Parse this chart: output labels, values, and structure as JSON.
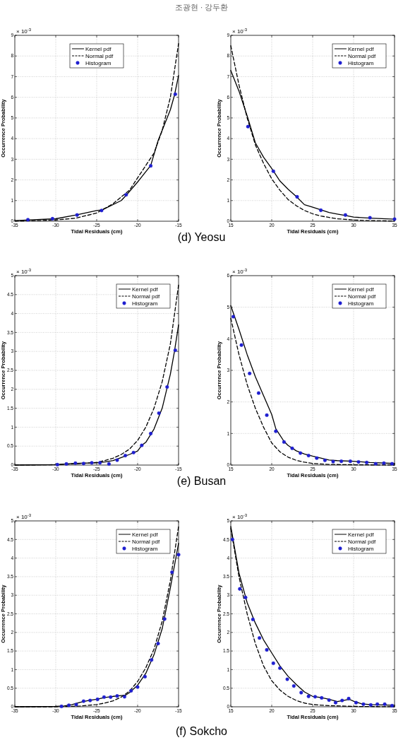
{
  "chart_data": [
    {
      "type": "line",
      "xlabel": "Tidal Residuals (cm)",
      "ylabel": "Occurrence Probability",
      "xlim": [
        -35,
        -15
      ],
      "xticks": [
        -35,
        -30,
        -25,
        -20,
        -15
      ],
      "ylim": [
        0,
        9
      ],
      "yticks": [
        0,
        1,
        2,
        3,
        4,
        5,
        6,
        7,
        8,
        9
      ],
      "grid": true,
      "legend": "top",
      "annotations": [
        "× 10$^{-3}$",
        "조광현 · 강두환"
      ],
      "series": [
        {
          "name": "Kernel pdf",
          "color": "#000000",
          "line_style": "solid",
          "x": [
            -35,
            -30,
            -27.5,
            -25,
            -24.3,
            -22,
            -21.3,
            -20,
            -18.4,
            -17.5,
            -16,
            -15.5,
            -15
          ],
          "values": [
            0.03,
            0.12,
            0.3,
            0.52,
            0.55,
            1.0,
            1.3,
            1.9,
            2.7,
            3.9,
            5.4,
            6.1,
            7.05
          ]
        },
        {
          "name": "Normal pdf",
          "color": "#000000",
          "line_style": "dashed",
          "x": [
            -35,
            -32,
            -30,
            -27.5,
            -25,
            -23,
            -21,
            -20,
            -18,
            -17,
            -16,
            -15
          ],
          "values": [
            0.01,
            0.03,
            0.06,
            0.15,
            0.4,
            0.85,
            1.5,
            2.1,
            3.3,
            4.4,
            6.0,
            8.6
          ]
        },
        {
          "name": "Histogram",
          "type": "scatter",
          "color": "#1f1fd0",
          "marker": "circle",
          "x": [
            -33.4,
            -30.4,
            -27.4,
            -24.4,
            -21.4,
            -18.4,
            -15.4
          ],
          "values": [
            0.07,
            0.12,
            0.3,
            0.52,
            1.28,
            2.68,
            6.15
          ]
        }
      ]
    },
    {
      "type": "line",
      "title": "(d) Yeosu",
      "xlabel": "Tidal Residuals (cm)",
      "ylabel": "Occurrence Probability",
      "xlim": [
        15,
        35
      ],
      "xticks": [
        15,
        20,
        25,
        30,
        35
      ],
      "ylim": [
        0,
        9
      ],
      "yticks": [
        0,
        1,
        2,
        3,
        4,
        5,
        6,
        7,
        8,
        9
      ],
      "grid": true,
      "legend": "top right",
      "annotations": [
        "× 10$^{-3}$"
      ],
      "series": [
        {
          "name": "Kernel pdf",
          "color": "#000000",
          "line_style": "solid",
          "x": [
            15,
            16,
            17,
            18,
            19,
            20,
            21,
            22,
            23,
            24,
            25,
            26,
            27,
            28,
            29,
            30,
            32,
            35
          ],
          "values": [
            7.3,
            6.3,
            5.1,
            3.8,
            3.1,
            2.55,
            1.95,
            1.55,
            1.2,
            0.8,
            0.68,
            0.55,
            0.42,
            0.35,
            0.28,
            0.2,
            0.15,
            0.1
          ]
        },
        {
          "name": "Normal pdf",
          "color": "#000000",
          "line_style": "dashed",
          "x": [
            15,
            16,
            17,
            18,
            19,
            20,
            21,
            22,
            23,
            24,
            25,
            26,
            28,
            30,
            32,
            35
          ],
          "values": [
            8.5,
            6.6,
            5.0,
            3.7,
            2.8,
            2.05,
            1.5,
            1.05,
            0.75,
            0.52,
            0.36,
            0.25,
            0.12,
            0.06,
            0.03,
            0.01
          ]
        },
        {
          "name": "Histogram",
          "type": "scatter",
          "color": "#1f1fd0",
          "marker": "circle",
          "x": [
            17.1,
            20.2,
            23.1,
            26,
            29,
            32,
            35
          ],
          "values": [
            4.58,
            2.42,
            1.18,
            0.53,
            0.3,
            0.17,
            0.1
          ]
        }
      ]
    },
    {
      "type": "line",
      "xlabel": "Tidal Residuals (cm)",
      "ylabel": "Occurrence Probability",
      "xlim": [
        -35,
        -15
      ],
      "xticks": [
        -35,
        -30,
        -25,
        -20,
        -15
      ],
      "ylim": [
        0,
        5
      ],
      "yticks": [
        0,
        0.5,
        1,
        1.5,
        2,
        2.5,
        3,
        3.5,
        4,
        4.5,
        5
      ],
      "grid": true,
      "legend": "top right",
      "annotations": [
        "× 10$^{-3}$"
      ],
      "series": [
        {
          "name": "Kernel pdf",
          "color": "#000000",
          "line_style": "solid",
          "x": [
            -35,
            -30,
            -28,
            -27,
            -25,
            -24,
            -23,
            -22,
            -21,
            -20,
            -19.5,
            -19,
            -18,
            -17,
            -16,
            -15.5,
            -15
          ],
          "values": [
            0,
            0.01,
            0.04,
            0.05,
            0.06,
            0.08,
            0.12,
            0.2,
            0.28,
            0.37,
            0.52,
            0.6,
            0.95,
            1.5,
            2.4,
            3.0,
            3.7
          ]
        },
        {
          "name": "Normal pdf",
          "color": "#000000",
          "line_style": "dashed",
          "x": [
            -35,
            -30,
            -27,
            -25,
            -24,
            -23,
            -22,
            -21,
            -20,
            -19,
            -18,
            -17,
            -16,
            -15
          ],
          "values": [
            0,
            0.01,
            0.04,
            0.07,
            0.12,
            0.18,
            0.28,
            0.42,
            0.65,
            1.0,
            1.5,
            2.2,
            3.2,
            4.75
          ]
        },
        {
          "name": "Histogram",
          "type": "scatter",
          "color": "#1f1fd0",
          "marker": "circle",
          "x": [
            -29.8,
            -28.7,
            -27.6,
            -26.6,
            -25.6,
            -24.6,
            -23.5,
            -22.5,
            -21.5,
            -20.5,
            -19.5,
            -18.4,
            -17.4,
            -16.4,
            -15.4
          ],
          "values": [
            0.01,
            0.03,
            0.05,
            0.04,
            0.06,
            0.06,
            0.03,
            0.13,
            0.25,
            0.33,
            0.52,
            0.83,
            1.37,
            2.06,
            3.03
          ]
        }
      ]
    },
    {
      "type": "line",
      "title": "(e) Busan",
      "xlabel": "Tidal Residuals (cm)",
      "ylabel": "Occurrence Probability",
      "xlim": [
        15,
        35
      ],
      "xticks": [
        15,
        20,
        25,
        30,
        35
      ],
      "ylim": [
        0,
        6
      ],
      "yticks": [
        0,
        1,
        2,
        3,
        4,
        5,
        6
      ],
      "grid": true,
      "legend": "top right",
      "annotations": [
        "× 10$^{-3}$"
      ],
      "series": [
        {
          "name": "Kernel pdf",
          "color": "#000000",
          "line_style": "solid",
          "x": [
            15,
            16,
            17,
            18,
            19,
            20,
            20.5,
            21,
            21.5,
            22,
            23,
            24,
            25,
            26,
            27,
            28,
            30,
            32,
            35
          ],
          "values": [
            5.05,
            4.3,
            3.5,
            2.8,
            2.2,
            1.6,
            1.15,
            0.95,
            0.75,
            0.62,
            0.45,
            0.35,
            0.28,
            0.22,
            0.16,
            0.14,
            0.12,
            0.08,
            0.05
          ]
        },
        {
          "name": "Normal pdf",
          "color": "#000000",
          "line_style": "dashed",
          "x": [
            15,
            16,
            17,
            18,
            19,
            20,
            21,
            22,
            23,
            24,
            25,
            27,
            30,
            35
          ],
          "values": [
            4.65,
            3.5,
            2.55,
            1.8,
            1.2,
            0.7,
            0.42,
            0.25,
            0.15,
            0.09,
            0.05,
            0.02,
            0.01,
            0
          ]
        },
        {
          "name": "Histogram",
          "type": "scatter",
          "color": "#1f1fd0",
          "marker": "circle",
          "x": [
            15.3,
            16.3,
            17.3,
            18.4,
            19.4,
            20.5,
            21.5,
            22.5,
            23.5,
            24.5,
            25.5,
            26.5,
            27.5,
            28.5,
            29.6,
            30.6,
            31.6,
            32.7,
            33.7,
            34.7
          ],
          "values": [
            4.7,
            3.8,
            2.9,
            2.28,
            1.58,
            1.07,
            0.73,
            0.53,
            0.38,
            0.3,
            0.22,
            0.15,
            0.11,
            0.12,
            0.12,
            0.1,
            0.08,
            0.04,
            0.06,
            0.04
          ]
        }
      ]
    },
    {
      "type": "line",
      "xlabel": "Tidal Residuals (cm)",
      "ylabel": "Occurrence Probability",
      "xlim": [
        -35,
        -15
      ],
      "xticks": [
        -35,
        -30,
        -25,
        -20,
        -15
      ],
      "ylim": [
        0,
        5
      ],
      "yticks": [
        0,
        0.5,
        1,
        1.5,
        2,
        2.5,
        3,
        3.5,
        4,
        4.5,
        5
      ],
      "grid": true,
      "legend": "top right",
      "annotations": [
        "× 10$^{-3}$"
      ],
      "series": [
        {
          "name": "Kernel pdf",
          "color": "#000000",
          "line_style": "solid",
          "x": [
            -35,
            -30,
            -29,
            -28,
            -27,
            -26,
            -25,
            -24,
            -23,
            -22,
            -21.5,
            -21,
            -20,
            -19,
            -18,
            -17,
            -16,
            -15
          ],
          "values": [
            0,
            0.01,
            0.02,
            0.06,
            0.12,
            0.17,
            0.2,
            0.25,
            0.28,
            0.3,
            0.31,
            0.38,
            0.58,
            0.9,
            1.4,
            2.1,
            3.2,
            4.4
          ]
        },
        {
          "name": "Normal pdf",
          "color": "#000000",
          "line_style": "dashed",
          "x": [
            -35,
            -30,
            -27,
            -25,
            -24,
            -23,
            -22,
            -21,
            -20,
            -19,
            -18,
            -17,
            -16,
            -15
          ],
          "values": [
            0,
            0,
            0.02,
            0.06,
            0.1,
            0.16,
            0.26,
            0.42,
            0.68,
            1.05,
            1.55,
            2.3,
            3.4,
            4.85
          ]
        },
        {
          "name": "Histogram",
          "type": "scatter",
          "color": "#1f1fd0",
          "marker": "circle",
          "x": [
            -29.3,
            -28.4,
            -27.5,
            -26.6,
            -25.8,
            -24.9,
            -24.1,
            -23.3,
            -22.5,
            -21.6,
            -20.8,
            -20,
            -19.1,
            -18.3,
            -17.5,
            -16.7,
            -15.8,
            -15
          ],
          "values": [
            0.01,
            0.04,
            0.06,
            0.15,
            0.17,
            0.2,
            0.26,
            0.26,
            0.29,
            0.27,
            0.43,
            0.53,
            0.81,
            1.26,
            1.7,
            2.36,
            3.62,
            4.09
          ]
        }
      ]
    },
    {
      "type": "line",
      "title": "(f) Sokcho",
      "xlabel": "Tidal Residuals (cm)",
      "ylabel": "Occurrence Probability",
      "xlim": [
        15,
        35
      ],
      "xticks": [
        15,
        20,
        25,
        30,
        35
      ],
      "ylim": [
        0,
        5
      ],
      "yticks": [
        0,
        0.5,
        1,
        1.5,
        2,
        2.5,
        3,
        3.5,
        4,
        4.5,
        5
      ],
      "grid": true,
      "legend": "top right",
      "annotations": [
        "× 10$^{-3}$"
      ],
      "series": [
        {
          "name": "Kernel pdf",
          "color": "#000000",
          "line_style": "solid",
          "x": [
            15,
            16,
            17,
            18,
            19,
            20,
            21,
            22,
            23,
            24,
            25,
            26,
            27,
            28,
            28.5,
            29.5,
            30,
            31,
            32,
            35
          ],
          "values": [
            4.85,
            3.6,
            2.8,
            2.25,
            1.8,
            1.45,
            1.1,
            0.82,
            0.6,
            0.4,
            0.28,
            0.25,
            0.2,
            0.14,
            0.16,
            0.2,
            0.15,
            0.08,
            0.06,
            0.04
          ]
        },
        {
          "name": "Normal pdf",
          "color": "#000000",
          "line_style": "dashed",
          "x": [
            15,
            16,
            17,
            18,
            19,
            20,
            21,
            22,
            23,
            24,
            25,
            27,
            30,
            35
          ],
          "values": [
            4.8,
            3.5,
            2.5,
            1.7,
            1.1,
            0.7,
            0.45,
            0.28,
            0.17,
            0.1,
            0.06,
            0.03,
            0.01,
            0
          ]
        },
        {
          "name": "Histogram",
          "type": "scatter",
          "color": "#1f1fd0",
          "marker": "circle",
          "x": [
            15.2,
            16.1,
            16.8,
            17.7,
            18.5,
            19.4,
            20.2,
            21,
            21.9,
            22.7,
            23.6,
            24.5,
            25.3,
            26.1,
            27,
            27.8,
            28.6,
            29.4,
            30.3,
            31.2,
            32.1,
            32.9,
            33.8,
            34.7
          ],
          "values": [
            4.5,
            3.17,
            2.94,
            2.35,
            1.85,
            1.53,
            1.17,
            1.04,
            0.74,
            0.56,
            0.38,
            0.28,
            0.27,
            0.24,
            0.18,
            0.11,
            0.17,
            0.22,
            0.11,
            0.07,
            0.05,
            0.07,
            0.07,
            0.03
          ]
        }
      ]
    }
  ]
}
